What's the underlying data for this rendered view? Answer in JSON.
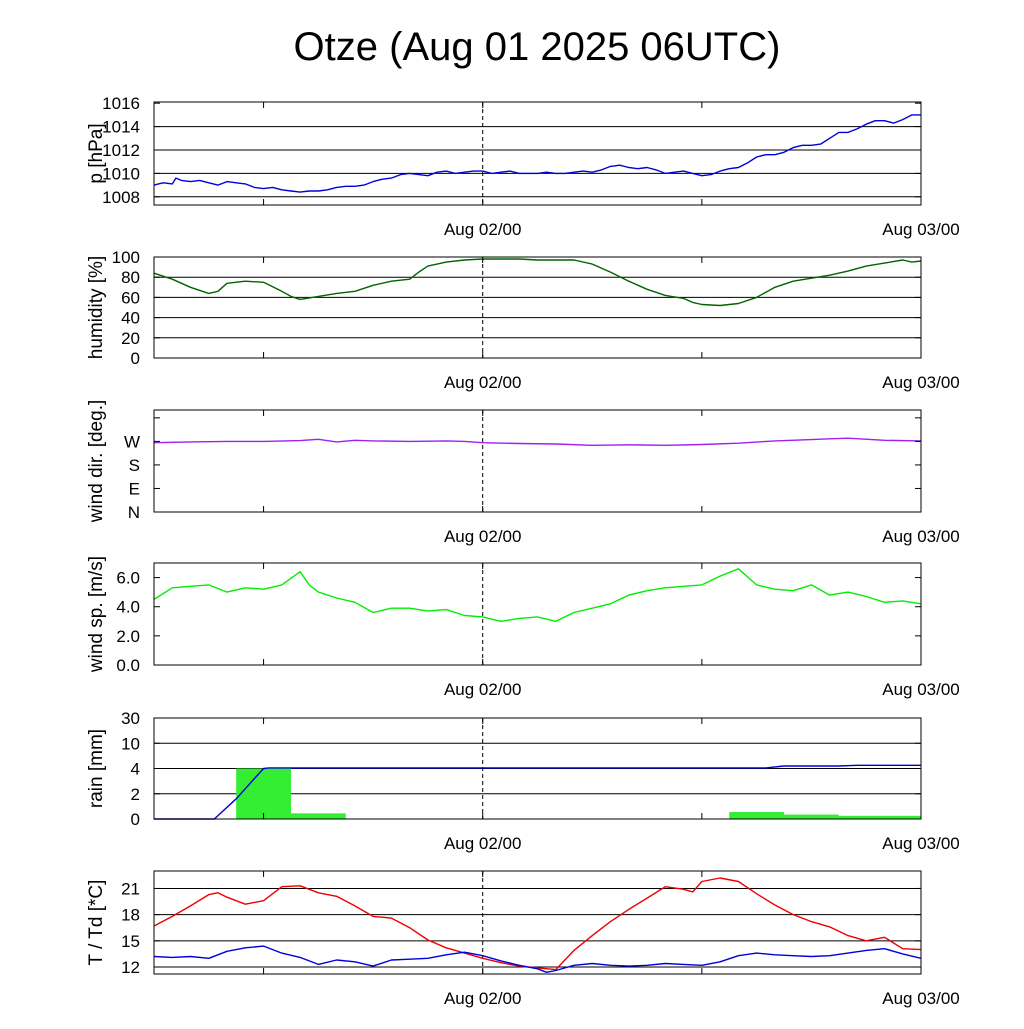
{
  "title": "Otze (Aug 01 2025 06UTC)",
  "x_tick_labels": [
    "Aug 02/00",
    "Aug 03/00"
  ],
  "chart_data": [
    {
      "type": "line",
      "ylabel": "p [hPa]",
      "ylim": [
        1007.3,
        1016.1
      ],
      "yticks": [
        1008,
        1010,
        1012,
        1014,
        1016
      ],
      "ytick_labels": [
        "1008",
        "1010",
        "1012",
        "1014",
        "1016"
      ],
      "hgrid": [
        1008,
        1010,
        1012,
        1014
      ],
      "xlim": [
        0,
        42
      ],
      "x_ticks_hours": [
        6,
        18,
        30
      ],
      "x_label_hours": [
        18,
        42
      ],
      "grid": true,
      "series": [
        {
          "color": "#0000dd",
          "x": [
            0,
            0.5,
            1,
            1.2,
            1.5,
            2,
            2.5,
            3,
            3.5,
            4,
            4.5,
            5,
            5.5,
            6,
            6.5,
            7,
            7.5,
            8,
            8.5,
            9,
            9.5,
            10,
            10.5,
            11,
            11.5,
            12,
            12.5,
            13,
            13.5,
            14,
            14.5,
            15,
            15.5,
            16,
            16.5,
            17,
            17.5,
            18,
            18.5,
            19,
            19.5,
            20,
            20.5,
            21,
            21.5,
            22,
            22.5,
            23,
            23.5,
            24,
            24.5,
            25,
            25.5,
            26,
            26.5,
            27,
            27.5,
            28,
            28.5,
            29,
            29.5,
            30,
            30.5,
            31,
            31.5,
            32,
            32.5,
            33,
            33.5,
            34,
            34.5,
            35,
            35.5,
            36,
            36.5,
            37,
            37.5,
            38,
            38.5,
            39,
            39.5,
            40,
            40.5,
            41,
            41.5,
            42
          ],
          "y": [
            1009.0,
            1009.2,
            1009.1,
            1009.6,
            1009.4,
            1009.3,
            1009.4,
            1009.2,
            1009.0,
            1009.3,
            1009.2,
            1009.1,
            1008.8,
            1008.7,
            1008.8,
            1008.6,
            1008.5,
            1008.4,
            1008.5,
            1008.5,
            1008.6,
            1008.8,
            1008.9,
            1008.9,
            1009.0,
            1009.3,
            1009.5,
            1009.6,
            1009.9,
            1010.0,
            1009.9,
            1009.8,
            1010.1,
            1010.2,
            1010.0,
            1010.1,
            1010.2,
            1010.2,
            1010.0,
            1010.1,
            1010.2,
            1010.0,
            1010.0,
            1010.0,
            1010.1,
            1010.0,
            1010.0,
            1010.1,
            1010.2,
            1010.1,
            1010.3,
            1010.6,
            1010.7,
            1010.5,
            1010.4,
            1010.5,
            1010.3,
            1010.0,
            1010.1,
            1010.2,
            1010.0,
            1009.8,
            1009.9,
            1010.2,
            1010.4,
            1010.5,
            1010.9,
            1011.4,
            1011.6,
            1011.6,
            1011.8,
            1012.2,
            1012.4,
            1012.4,
            1012.5,
            1013.0,
            1013.5,
            1013.5,
            1013.8,
            1014.2,
            1014.5,
            1014.5,
            1014.3,
            1014.6,
            1015.0,
            1015.0
          ]
        }
      ]
    },
    {
      "type": "line",
      "ylabel": "humidity [%]",
      "ylim": [
        0,
        100
      ],
      "yticks": [
        0,
        20,
        40,
        60,
        80,
        100
      ],
      "ytick_labels": [
        "0",
        "20",
        "40",
        "60",
        "80",
        "100"
      ],
      "hgrid": [
        20,
        40,
        60,
        80
      ],
      "xlim": [
        0,
        42
      ],
      "x_ticks_hours": [
        6,
        18,
        30
      ],
      "x_label_hours": [
        18,
        42
      ],
      "grid": true,
      "series": [
        {
          "color": "#006400",
          "x": [
            0,
            1,
            2,
            3,
            3.5,
            4,
            5,
            6,
            7,
            7.5,
            8,
            9,
            10,
            11,
            12,
            13,
            14,
            14.5,
            15,
            16,
            17,
            18,
            19,
            20,
            21,
            22,
            23,
            24,
            25,
            26,
            27,
            28,
            29,
            29.5,
            30,
            31,
            32,
            33,
            34,
            35,
            36,
            37,
            38,
            39,
            40,
            41,
            41.5,
            42
          ],
          "y": [
            84,
            78,
            70,
            64,
            66,
            74,
            76,
            75,
            66,
            61,
            58,
            61,
            64,
            66,
            72,
            76,
            78,
            85,
            91,
            95,
            97,
            98,
            98,
            98,
            97,
            97,
            97,
            93,
            85,
            76,
            68,
            62,
            59,
            55,
            53,
            52,
            54,
            60,
            70,
            76,
            79,
            82,
            86,
            91,
            94,
            97,
            95,
            96
          ]
        }
      ]
    },
    {
      "type": "line",
      "ylabel": "wind dir. [deg.]",
      "ylim": [
        0,
        390
      ],
      "yticks": [
        0,
        90,
        180,
        270,
        360
      ],
      "ytick_labels": [
        "N",
        "E",
        "S",
        "W",
        ""
      ],
      "hgrid": [],
      "xlim": [
        0,
        42
      ],
      "x_ticks_hours": [
        6,
        18,
        30
      ],
      "x_label_hours": [
        18,
        42
      ],
      "grid": false,
      "series": [
        {
          "color": "#a020f0",
          "x": [
            0,
            2,
            4,
            6,
            8,
            9,
            10,
            11,
            12,
            14,
            16,
            17,
            18,
            20,
            22,
            24,
            26,
            28,
            30,
            32,
            34,
            36,
            37,
            38,
            40,
            42
          ],
          "y": [
            265,
            268,
            270,
            270,
            273,
            278,
            268,
            274,
            272,
            270,
            272,
            270,
            265,
            262,
            260,
            255,
            257,
            255,
            258,
            263,
            272,
            277,
            280,
            282,
            274,
            272
          ]
        }
      ]
    },
    {
      "type": "line",
      "ylabel": "wind sp. [m/s]",
      "ylim": [
        0,
        7.0
      ],
      "yticks": [
        0,
        2,
        4,
        6
      ],
      "ytick_labels": [
        "0.0",
        "2.0",
        "4.0",
        "6.0"
      ],
      "hgrid": [],
      "xlim": [
        0,
        42
      ],
      "x_ticks_hours": [
        6,
        18,
        30
      ],
      "x_label_hours": [
        18,
        42
      ],
      "grid": false,
      "series": [
        {
          "color": "#00ee00",
          "x": [
            0,
            1,
            2,
            3,
            4,
            5,
            6,
            7,
            8,
            8.5,
            9,
            10,
            11,
            12,
            13,
            14,
            15,
            16,
            17,
            18,
            19,
            20,
            21,
            22,
            23,
            24,
            25,
            26,
            27,
            28,
            29,
            30,
            31,
            32,
            33,
            34,
            35,
            36,
            37,
            38,
            39,
            40,
            41,
            42
          ],
          "y": [
            4.5,
            5.3,
            5.4,
            5.5,
            5.0,
            5.3,
            5.2,
            5.5,
            6.4,
            5.5,
            5.0,
            4.6,
            4.3,
            3.6,
            3.9,
            3.9,
            3.7,
            3.8,
            3.4,
            3.3,
            3.0,
            3.2,
            3.3,
            3.0,
            3.6,
            3.9,
            4.2,
            4.8,
            5.1,
            5.3,
            5.4,
            5.5,
            6.1,
            6.6,
            5.5,
            5.2,
            5.1,
            5.5,
            4.8,
            5.0,
            4.7,
            4.3,
            4.4,
            4.2
          ]
        }
      ]
    },
    {
      "type": "bar",
      "ylabel": "rain [mm]",
      "ylim": [
        0,
        30
      ],
      "yticks": [
        0,
        2,
        4,
        10,
        30
      ],
      "ytick_labels": [
        "0",
        "2",
        "4",
        "10",
        "30"
      ],
      "hgrid": [
        2,
        4,
        10
      ],
      "y_scale": "piecewise",
      "y_scale_breaks": [
        [
          0,
          0
        ],
        [
          2,
          1
        ],
        [
          4,
          2
        ],
        [
          10,
          3
        ],
        [
          30,
          4
        ]
      ],
      "xlim": [
        0,
        42
      ],
      "x_ticks_hours": [
        6,
        18,
        30
      ],
      "x_label_hours": [
        18,
        42
      ],
      "grid": true,
      "bars": {
        "color": "#33ee33",
        "start": [
          4.5,
          7.5,
          31.5,
          34.5,
          37.5
        ],
        "end": [
          7.5,
          10.5,
          34.5,
          37.5,
          42
        ],
        "values": [
          4.0,
          0.45,
          0.55,
          0.35,
          0.25
        ]
      },
      "series": [
        {
          "color": "#0000dd",
          "x": [
            0,
            3.3,
            4.5,
            5.5,
            6.0,
            6.3,
            31.5,
            33.5,
            34.5,
            37.5,
            38.5,
            42
          ],
          "y": [
            0,
            0,
            1.6,
            3.2,
            4.0,
            4.15,
            4.15,
            4.15,
            4.6,
            4.6,
            4.75,
            4.75
          ]
        }
      ]
    },
    {
      "type": "line",
      "ylabel": "T / Td [*C]",
      "ylim": [
        11.2,
        23.0
      ],
      "yticks": [
        12,
        15,
        18,
        21
      ],
      "ytick_labels": [
        "12",
        "15",
        "18",
        "21"
      ],
      "hgrid": [
        12,
        15,
        18,
        21
      ],
      "xlim": [
        0,
        42
      ],
      "x_ticks_hours": [
        6,
        18,
        30
      ],
      "x_label_hours": [
        18,
        42
      ],
      "grid": true,
      "series": [
        {
          "color": "#ee0000",
          "x": [
            0,
            1,
            2,
            3,
            3.5,
            4,
            5,
            6,
            7,
            8,
            9,
            10,
            11,
            12,
            13,
            14,
            15,
            16,
            17,
            18,
            19,
            20,
            21,
            22,
            23,
            24,
            25,
            26,
            27,
            28,
            29,
            29.5,
            30,
            31,
            32,
            33,
            34,
            35,
            36,
            37,
            38,
            39,
            40,
            41,
            42
          ],
          "y": [
            16.7,
            17.8,
            19.0,
            20.3,
            20.5,
            20.0,
            19.2,
            19.6,
            21.2,
            21.3,
            20.5,
            20.1,
            19.0,
            17.8,
            17.6,
            16.5,
            15.1,
            14.2,
            13.6,
            13.0,
            12.5,
            12.1,
            11.9,
            11.7,
            13.9,
            15.6,
            17.2,
            18.6,
            19.9,
            21.2,
            20.9,
            20.6,
            21.8,
            22.2,
            21.8,
            20.4,
            19.1,
            18.0,
            17.2,
            16.6,
            15.6,
            15.0,
            15.4,
            14.1,
            14.0
          ]
        },
        {
          "color": "#0000dd",
          "x": [
            0,
            1,
            2,
            3,
            4,
            5,
            6,
            7,
            8,
            9,
            10,
            11,
            12,
            13,
            14,
            15,
            16,
            17,
            18,
            19,
            20,
            21,
            21.5,
            22,
            23,
            24,
            25,
            26,
            27,
            28,
            29,
            30,
            31,
            32,
            33,
            34,
            35,
            36,
            37,
            38,
            39,
            40,
            41,
            42
          ],
          "y": [
            13.2,
            13.1,
            13.2,
            13.0,
            13.8,
            14.2,
            14.4,
            13.6,
            13.1,
            12.3,
            12.8,
            12.6,
            12.1,
            12.8,
            12.9,
            13.0,
            13.4,
            13.7,
            13.3,
            12.7,
            12.2,
            11.8,
            11.4,
            11.6,
            12.2,
            12.4,
            12.2,
            12.1,
            12.2,
            12.4,
            12.3,
            12.2,
            12.6,
            13.3,
            13.6,
            13.4,
            13.3,
            13.2,
            13.3,
            13.6,
            13.9,
            14.1,
            13.5,
            13.0
          ]
        }
      ]
    }
  ]
}
